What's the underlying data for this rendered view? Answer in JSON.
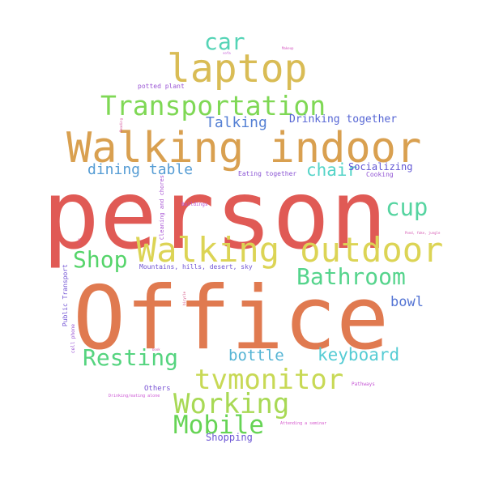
{
  "words": [
    {
      "text": "person",
      "color": "#e05a55"
    },
    {
      "text": "Office",
      "color": "#e07a50"
    },
    {
      "text": "Walking indoor",
      "color": "#d9a050"
    },
    {
      "text": "Walking outdoor",
      "color": "#dcd455"
    },
    {
      "text": "laptop",
      "color": "#d9bc55"
    },
    {
      "text": "Transportation",
      "color": "#7fd855"
    },
    {
      "text": "tvmonitor",
      "color": "#c8d955"
    },
    {
      "text": "Working",
      "color": "#a8d955"
    },
    {
      "text": "Mobile",
      "color": "#66d455"
    },
    {
      "text": "Resting",
      "color": "#55d47f"
    },
    {
      "text": "Bathroom",
      "color": "#55d48c"
    },
    {
      "text": "Shop",
      "color": "#55d46a"
    },
    {
      "text": "car",
      "color": "#55d4b6"
    },
    {
      "text": "cup",
      "color": "#55d4a0"
    },
    {
      "text": "chair",
      "color": "#55d4c8"
    },
    {
      "text": "keyboard",
      "color": "#55ccd4"
    },
    {
      "text": "bottle",
      "color": "#55b4d4"
    },
    {
      "text": "dining table",
      "color": "#559cd4"
    },
    {
      "text": "Talking",
      "color": "#5580d4"
    },
    {
      "text": "bowl",
      "color": "#5575d4"
    },
    {
      "text": "Drinking together",
      "color": "#5565d4"
    },
    {
      "text": "Socializing",
      "color": "#6055d4"
    },
    {
      "text": "Shopping",
      "color": "#6c55d4"
    },
    {
      "text": "Others",
      "color": "#7a55d4"
    },
    {
      "text": "Eating together",
      "color": "#8a55d4"
    },
    {
      "text": "Cooking",
      "color": "#9255d4"
    },
    {
      "text": "potted plant",
      "color": "#9a55d4"
    },
    {
      "text": "Mountains, hills, desert, sky",
      "color": "#7055d4"
    },
    {
      "text": "Cleaning and chores",
      "color": "#a855d4"
    },
    {
      "text": "Public Transport",
      "color": "#7355d4"
    },
    {
      "text": "cell phone",
      "color": "#9a55d4"
    },
    {
      "text": "Buildings",
      "color": "#b855d4"
    },
    {
      "text": "Pathways",
      "color": "#c455d4"
    },
    {
      "text": "Drinking/eating alone",
      "color": "#cc55d4"
    },
    {
      "text": "Attending a seminar",
      "color": "#d455cc"
    },
    {
      "text": "sofa",
      "color": "#c055d4"
    },
    {
      "text": "Makeup",
      "color": "#d455c0"
    },
    {
      "text": "Pond, fake, jungle",
      "color": "#d455b0"
    },
    {
      "text": "book",
      "color": "#d455a8"
    },
    {
      "text": "Reading",
      "color": "#d4559c"
    },
    {
      "text": "toys",
      "color": "#d45590"
    },
    {
      "text": "bicycle",
      "color": "#d45584"
    }
  ]
}
